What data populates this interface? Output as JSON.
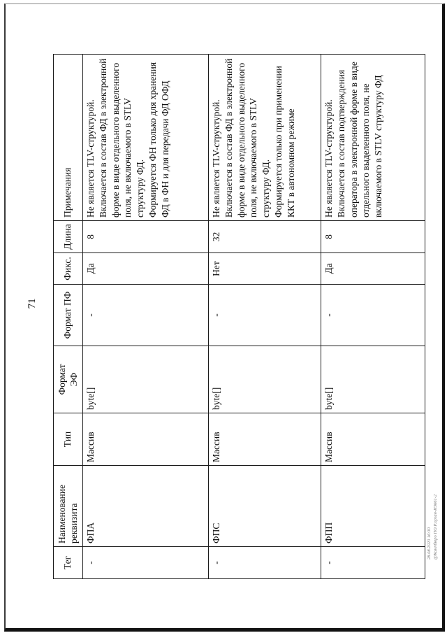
{
  "page": {
    "number": "71",
    "stamp_line1": "28.08.2020 16:30",
    "stamp_line2": "@Компбюро ПО.Р.орган-И3661-2"
  },
  "table": {
    "columns": [
      {
        "key": "tag",
        "label": "Тег"
      },
      {
        "key": "name",
        "label": "Наименование реквизита"
      },
      {
        "key": "type",
        "label": "Тип"
      },
      {
        "key": "format_ef",
        "label": "Формат\nЭФ"
      },
      {
        "key": "format_pf",
        "label": "Формат ПФ"
      },
      {
        "key": "fixed",
        "label": "Фикс."
      },
      {
        "key": "length",
        "label": "Длина"
      },
      {
        "key": "notes",
        "label": "Примечания"
      }
    ],
    "rows": [
      {
        "tag": "-",
        "name": "ФПА",
        "type": "Массив",
        "format_ef": "byte[]",
        "format_pf": "-",
        "fixed": "Да",
        "length": "8",
        "notes": "Не является TLV-структурой. Включается в состав ФД в электронной форме в виде отдельного выделенного поля, не включаемого в STLV структуру ФД.\nФормируется ФН только для хранения ФД в ФН и для передачи ФД ОФД"
      },
      {
        "tag": "-",
        "name": "ФПС",
        "type": "Массив",
        "format_ef": "byte[]",
        "format_pf": "-",
        "fixed": "Нет",
        "length": "32",
        "notes": "Не является TLV-структурой. Включается в состав ФД в электронной форме в виде отдельного выделенного поля, не включаемого в STLV структуру ФД.\nФормируется только при применении ККТ в автономном режиме"
      },
      {
        "tag": "-",
        "name": "ФПП",
        "type": "Массив",
        "format_ef": "byte[]",
        "format_pf": "-",
        "fixed": "Да",
        "length": "8",
        "notes": "Не является TLV-структурой. Включается в состав подтверждения оператора в электронной форме в виде отдельного выделенного поля, не включаемого в STLV структуру ФД"
      }
    ]
  }
}
